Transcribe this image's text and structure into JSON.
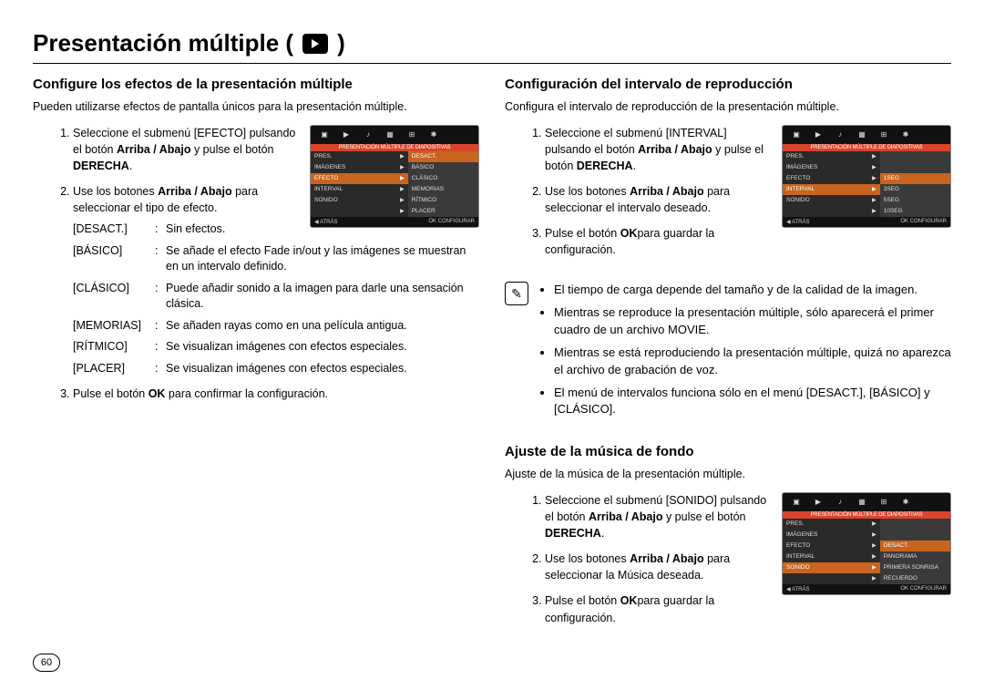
{
  "title": "Presentación múltiple (",
  "title_close": ")",
  "page_number": "60",
  "left": {
    "heading": "Configure los efectos de la presentación múltiple",
    "intro": "Pueden utilizarse efectos de pantalla únicos para la presentación múltiple.",
    "step1_a": "Seleccione el submenú [EFECTO] pulsando el botón ",
    "step1_b": "Arriba / Abajo",
    "step1_c": " y pulse el botón ",
    "step1_d": "DERECHA",
    "step1_e": ".",
    "step2_a": "Use los botones ",
    "step2_b": "Arriba / Abajo",
    "step2_c": " para seleccionar el tipo de efecto.",
    "defs": [
      {
        "k": "[DESACT.]",
        "v": "Sin efectos."
      },
      {
        "k": "[BÁSICO]",
        "v": "Se añade el efecto Fade in/out y las imágenes se muestran en un intervalo definido."
      },
      {
        "k": "[CLÁSICO]",
        "v": "Puede añadir sonido a la imagen para darle una sensación clásica."
      },
      {
        "k": "[MEMORIAS]",
        "v": "Se añaden rayas como en una película antigua."
      },
      {
        "k": "[RÍTMICO]",
        "v": "Se visualizan imágenes con efectos especiales."
      },
      {
        "k": "[PLACER]",
        "v": "Se visualizan imágenes con efectos especiales."
      }
    ],
    "step3_a": "Pulse el botón ",
    "step3_b": "OK",
    "step3_c": " para confirmar la configuración.",
    "lcd": {
      "banner": "PRESENTACIÓN MÚLTIPLE DE DIAPOSITIVAS",
      "left_items": [
        "PRES.",
        "IMÁGENES",
        "EFECTO",
        "INTERVAL",
        "SONIDO",
        ""
      ],
      "right_items": [
        "DESACT.",
        "BÁSICO",
        "CLÁSICO",
        "MEMORIAS",
        "RÍTMICO",
        "PLACER"
      ],
      "hl_left_idx": 2,
      "hl_right_idx": 0,
      "foot_left": "◀  ATRÁS",
      "foot_right": "OK  CONFIGURAR"
    }
  },
  "right_top": {
    "heading": "Configuración del intervalo de reproducción",
    "intro": "Configura el intervalo de reproducción de la presentación múltiple.",
    "step1_a": "Seleccione el submenú [INTERVAL] pulsando el botón ",
    "step1_b": "Arriba / Abajo",
    "step1_c": " y pulse el botón ",
    "step1_d": "DERECHA",
    "step1_e": ".",
    "step2_a": "Use los botones ",
    "step2_b": "Arriba / Abajo",
    "step2_c": " para seleccionar el intervalo deseado.",
    "step3_a": "Pulse el botón ",
    "step3_b": "OK",
    "step3_c": "para guardar la configuración.",
    "lcd": {
      "banner": "PRESENTACIÓN MÚLTIPLE DE DIAPOSITIVAS",
      "left_items": [
        "PRES.",
        "IMÁGENES",
        "EFECTO",
        "INTERVAL",
        "SONIDO",
        ""
      ],
      "right_items": [
        "",
        "",
        "1SEG",
        "3SEG",
        "5SEG",
        "10SEG"
      ],
      "hl_left_idx": 3,
      "hl_right_idx": 2,
      "foot_left": "◀  ATRÁS",
      "foot_right": "OK  CONFIGURAR"
    },
    "notes": [
      "El tiempo de carga depende del tamaño y de la calidad de la imagen.",
      "Mientras se reproduce la presentación múltiple, sólo aparecerá el primer cuadro de un archivo MOVIE.",
      "Mientras se está reproduciendo la presentación múltiple, quizá no aparezca el archivo de grabación de voz.",
      "El menú de intervalos funciona sólo en el menú [DESACT.], [BÁSICO] y [CLÁSICO]."
    ]
  },
  "right_bottom": {
    "heading": "Ajuste de la música de fondo",
    "intro": "Ajuste de la música de la presentación múltiple.",
    "step1_a": "Seleccione el submenú [SONIDO] pulsando el botón ",
    "step1_b": "Arriba / Abajo",
    "step1_c": " y pulse el botón ",
    "step1_d": "DERECHA",
    "step1_e": ".",
    "step2_a": "Use los botones ",
    "step2_b": "Arriba / Abajo",
    "step2_c": " para seleccionar la Música deseada.",
    "step3_a": "Pulse el botón  ",
    "step3_b": "OK",
    "step3_c": "para guardar la configuración.",
    "lcd": {
      "banner": "PRESENTACIÓN MÚLTIPLE DE DIAPOSITIVAS",
      "left_items": [
        "PRES.",
        "IMÁGENES",
        "EFECTO",
        "INTERVAL",
        "SONIDO",
        ""
      ],
      "right_items": [
        "",
        "",
        "DESACT.",
        "PANORAMA",
        "PRIMERA SONRISA",
        "RECUERDO"
      ],
      "hl_left_idx": 4,
      "hl_right_idx": 2,
      "foot_left": "◀  ATRÁS",
      "foot_right": "OK  CONFIGURAR"
    }
  },
  "lcd_icons": [
    "▣",
    "▶",
    "♪",
    "▦",
    "⊞",
    "✱"
  ]
}
